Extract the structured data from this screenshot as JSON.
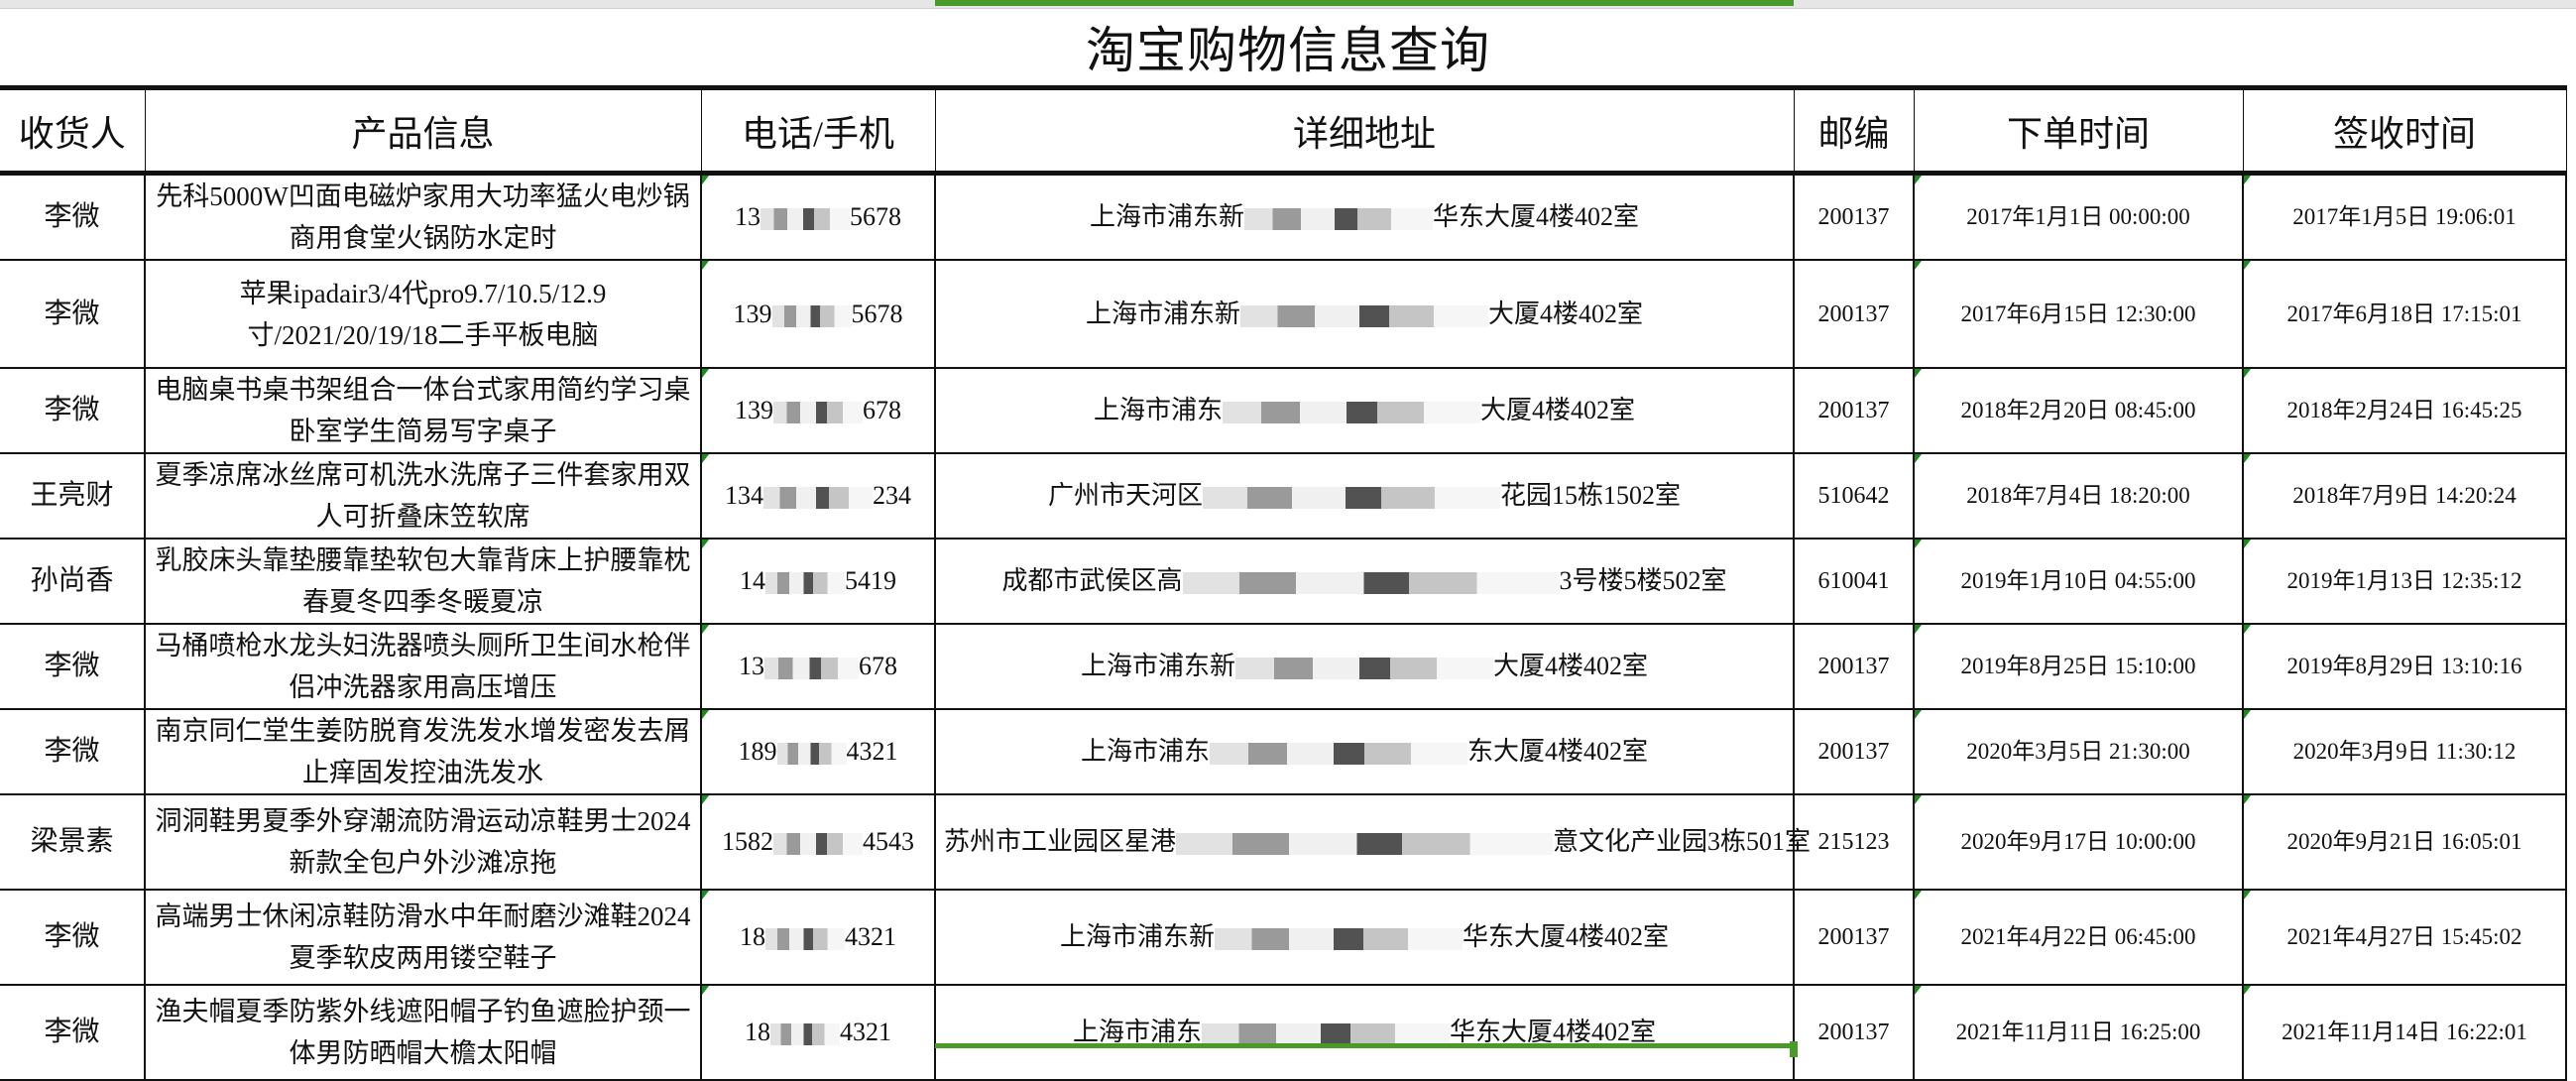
{
  "title": "淘宝购物信息查询",
  "headers": [
    "收货人",
    "产品信息",
    "电话/手机",
    "详细地址",
    "邮编",
    "下单时间",
    "签收时间"
  ],
  "accent_color": "#4a9a2a",
  "rows": [
    {
      "name": "李微",
      "product": "先科5000W凹面电磁炉家用大功率猛火电炒锅商用食堂火锅防水定时",
      "phone_pre": "13",
      "phone_suf": "5678",
      "addr_pre": "上海市浦东新",
      "addr_suf": "华东大厦4楼402室",
      "zip": "200137",
      "order": "2017年1月1日 00:00:00",
      "sign": "2017年1月5日 19:06:01"
    },
    {
      "name": "李微",
      "product": "苹果ipadair3/4代pro9.7/10.5/12.9寸/2021/20/19/18二手平板电脑",
      "phone_pre": "139",
      "phone_suf": "5678",
      "addr_pre": "上海市浦东新",
      "addr_suf": "大厦4楼402室",
      "zip": "200137",
      "order": "2017年6月15日 12:30:00",
      "sign": "2017年6月18日 17:15:01"
    },
    {
      "name": "李微",
      "product": "电脑桌书桌书架组合一体台式家用简约学习桌卧室学生简易写字桌子",
      "phone_pre": "139",
      "phone_suf": "678",
      "addr_pre": "上海市浦东",
      "addr_suf": "大厦4楼402室",
      "zip": "200137",
      "order": "2018年2月20日 08:45:00",
      "sign": "2018年2月24日 16:45:25"
    },
    {
      "name": "王亮财",
      "product": "夏季凉席冰丝席可机洗水洗席子三件套家用双人可折叠床笠软席",
      "phone_pre": "134",
      "phone_suf": "234",
      "addr_pre": "广州市天河区",
      "addr_suf": "花园15栋1502室",
      "zip": "510642",
      "order": "2018年7月4日 18:20:00",
      "sign": "2018年7月9日 14:20:24"
    },
    {
      "name": "孙尚香",
      "product": "乳胶床头靠垫腰靠垫软包大靠背床上护腰靠枕春夏冬四季冬暖夏凉",
      "phone_pre": "14",
      "phone_suf": "5419",
      "addr_pre": "成都市武侯区高",
      "addr_suf": "3号楼5楼502室",
      "zip": "610041",
      "order": "2019年1月10日 04:55:00",
      "sign": "2019年1月13日 12:35:12"
    },
    {
      "name": "李微",
      "product": "马桶喷枪水龙头妇洗器喷头厕所卫生间水枪伴侣冲洗器家用高压增压",
      "phone_pre": "13",
      "phone_suf": "678",
      "addr_pre": "上海市浦东新",
      "addr_suf": "大厦4楼402室",
      "zip": "200137",
      "order": "2019年8月25日 15:10:00",
      "sign": "2019年8月29日 13:10:16"
    },
    {
      "name": "李微",
      "product": "南京同仁堂生姜防脱育发洗发水增发密发去屑止痒固发控油洗发水",
      "phone_pre": "189",
      "phone_suf": "4321",
      "addr_pre": "上海市浦东",
      "addr_suf": "东大厦4楼402室",
      "zip": "200137",
      "order": "2020年3月5日 21:30:00",
      "sign": "2020年3月9日 11:30:12"
    },
    {
      "name": "梁景素",
      "product": "洞洞鞋男夏季外穿潮流防滑运动凉鞋男士2024新款全包户外沙滩凉拖",
      "phone_pre": "1582",
      "phone_suf": "4543",
      "addr_pre": "苏州市工业园区星港",
      "addr_suf": "意文化产业园3栋501室",
      "zip": "215123",
      "order": "2020年9月17日 10:00:00",
      "sign": "2020年9月21日 16:05:01"
    },
    {
      "name": "李微",
      "product": "高端男士休闲凉鞋防滑水中年耐磨沙滩鞋2024夏季软皮两用镂空鞋子",
      "phone_pre": "18",
      "phone_suf": "4321",
      "addr_pre": "上海市浦东新",
      "addr_suf": "华东大厦4楼402室",
      "zip": "200137",
      "order": "2021年4月22日 06:45:00",
      "sign": "2021年4月27日 15:45:02"
    },
    {
      "name": "李微",
      "product": "渔夫帽夏季防紫外线遮阳帽子钓鱼遮脸护颈一体男防晒帽大檐太阳帽",
      "phone_pre": "18",
      "phone_suf": "4321",
      "addr_pre": "上海市浦东",
      "addr_suf": "华东大厦4楼402室",
      "zip": "200137",
      "order": "2021年11月11日 16:25:00",
      "sign": "2021年11月14日 16:22:01"
    }
  ]
}
